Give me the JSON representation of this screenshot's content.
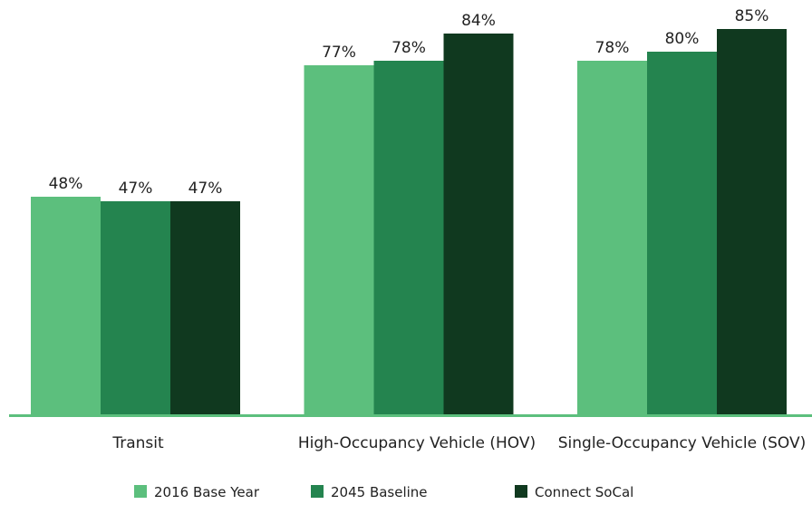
{
  "chart_data": {
    "type": "bar",
    "categories": [
      "Transit",
      "High-Occupancy Vehicle (HOV)",
      "Single-Occupancy Vehicle (SOV)"
    ],
    "series": [
      {
        "name": "2016 Base Year",
        "color": "#5cbf7d",
        "values": [
          48,
          77,
          78
        ],
        "value_labels": [
          "48%",
          "77%",
          "78%"
        ]
      },
      {
        "name": "2045 Baseline",
        "color": "#24844f",
        "values": [
          47,
          78,
          80
        ],
        "value_labels": [
          "47%",
          "78%",
          "80%"
        ]
      },
      {
        "name": "Connect SoCal",
        "color": "#10391f",
        "values": [
          47,
          84,
          85
        ],
        "value_labels": [
          "47%",
          "84%",
          "85%"
        ]
      }
    ],
    "axis_color": "#5cbf7d"
  }
}
